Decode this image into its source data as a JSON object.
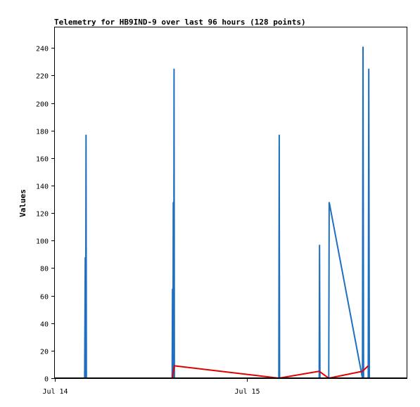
{
  "chart_data": {
    "type": "line",
    "title": "Telemetry for HB9IND-9 over last 96 hours (128 points)",
    "xlabel": "",
    "ylabel": "Values",
    "ylim": [
      0,
      255
    ],
    "yticks": [
      0,
      20,
      40,
      60,
      80,
      100,
      120,
      140,
      160,
      180,
      200,
      220,
      240
    ],
    "xlim": [
      0,
      1.83
    ],
    "xticks": [
      {
        "value": 0,
        "label": "Jul 14"
      },
      {
        "value": 1,
        "label": "Jul 15"
      }
    ],
    "grid": false,
    "legend": "none",
    "series": [
      {
        "color": "#1f6fc0",
        "points": [
          [
            0.155,
            0
          ],
          [
            0.158,
            88
          ],
          [
            0.16,
            0
          ],
          [
            0.162,
            177
          ],
          [
            0.164,
            0
          ],
          [
            0.61,
            0
          ],
          [
            0.612,
            65
          ],
          [
            0.614,
            0
          ],
          [
            0.616,
            128
          ],
          [
            0.618,
            0
          ],
          [
            0.62,
            225
          ],
          [
            0.622,
            0
          ],
          [
            1.165,
            0
          ],
          [
            1.167,
            177
          ],
          [
            1.169,
            0
          ],
          [
            1.375,
            0
          ],
          [
            1.377,
            97
          ],
          [
            1.379,
            0
          ],
          [
            1.425,
            0
          ],
          [
            1.427,
            128
          ],
          [
            1.6,
            0
          ],
          [
            1.603,
            241
          ],
          [
            1.606,
            0
          ],
          [
            1.63,
            0
          ],
          [
            1.633,
            225
          ],
          [
            1.636,
            0
          ]
        ]
      },
      {
        "color": "#e00000",
        "points": [
          [
            0.155,
            0
          ],
          [
            0.61,
            0
          ],
          [
            0.622,
            9
          ],
          [
            1.165,
            0
          ],
          [
            1.375,
            5
          ],
          [
            1.425,
            0
          ],
          [
            1.6,
            5
          ],
          [
            1.63,
            9
          ]
        ]
      },
      {
        "color": "#000000",
        "points": [
          [
            0.0,
            0
          ],
          [
            1.83,
            0
          ]
        ]
      }
    ]
  }
}
